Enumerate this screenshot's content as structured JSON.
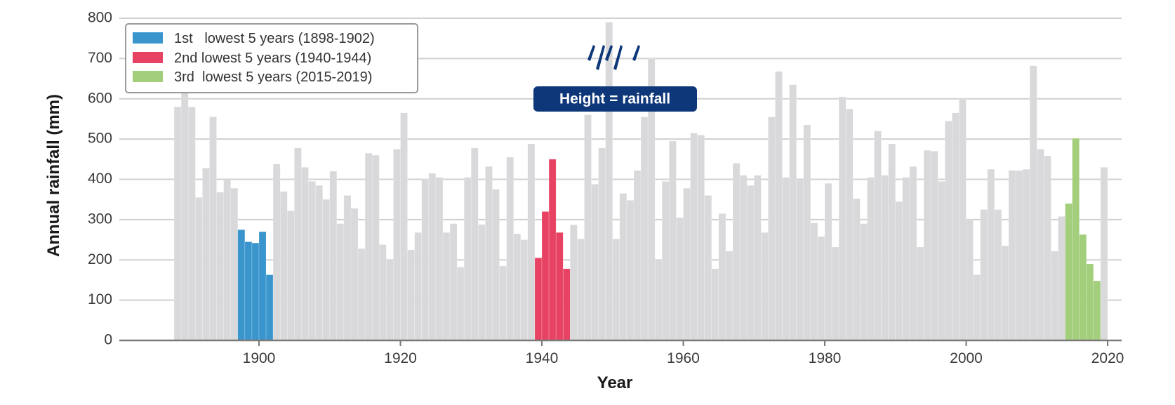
{
  "chart_data": {
    "type": "bar",
    "xlabel": "Year",
    "ylabel": "Annual rainfall (mm)",
    "ylim": [
      0,
      800
    ],
    "xlim": [
      1882,
      2022
    ],
    "xticks": [
      1900,
      1920,
      1940,
      1960,
      1980,
      2000,
      2020
    ],
    "yticks": [
      0,
      100,
      200,
      300,
      400,
      500,
      600,
      700,
      800
    ],
    "grid": "horizontal",
    "legend_position": "top-left",
    "legend": [
      {
        "label": "1st   lowest 5 years (1898-1902)",
        "color": "#3a95cd"
      },
      {
        "label": "2nd lowest 5 years (1940-1944)",
        "color": "#e84263"
      },
      {
        "label": "3rd  lowest 5 years (2015-2019)",
        "color": "#a3ce7c"
      }
    ],
    "annotation": "Height = rainfall",
    "colors": {
      "default": "#d9d9db",
      "low1": "#3a95cd",
      "low2": "#e84263",
      "low3": "#a3ce7c",
      "callout": "#0d3778",
      "grid": "#d0d0d0",
      "axis": "#7a7a7a"
    },
    "highlight_ranges": [
      {
        "start": 1898,
        "end": 1902,
        "color": "#3a95cd"
      },
      {
        "start": 1940,
        "end": 1944,
        "color": "#e84263"
      },
      {
        "start": 2015,
        "end": 2019,
        "color": "#a3ce7c"
      }
    ],
    "years": [
      1889,
      1890,
      1891,
      1892,
      1893,
      1894,
      1895,
      1896,
      1897,
      1898,
      1899,
      1900,
      1901,
      1902,
      1903,
      1904,
      1905,
      1906,
      1907,
      1908,
      1909,
      1910,
      1911,
      1912,
      1913,
      1914,
      1915,
      1916,
      1917,
      1918,
      1919,
      1920,
      1921,
      1922,
      1923,
      1924,
      1925,
      1926,
      1927,
      1928,
      1929,
      1930,
      1931,
      1932,
      1933,
      1934,
      1935,
      1936,
      1937,
      1938,
      1939,
      1940,
      1941,
      1942,
      1943,
      1944,
      1945,
      1946,
      1947,
      1948,
      1949,
      1950,
      1951,
      1952,
      1953,
      1954,
      1955,
      1956,
      1957,
      1958,
      1959,
      1960,
      1961,
      1962,
      1963,
      1964,
      1965,
      1966,
      1967,
      1968,
      1969,
      1970,
      1971,
      1972,
      1973,
      1974,
      1975,
      1976,
      1977,
      1978,
      1979,
      1980,
      1981,
      1982,
      1983,
      1984,
      1985,
      1986,
      1987,
      1988,
      1989,
      1990,
      1991,
      1992,
      1993,
      1994,
      1995,
      1996,
      1997,
      1998,
      1999,
      2000,
      2001,
      2002,
      2003,
      2004,
      2005,
      2006,
      2007,
      2008,
      2009,
      2010,
      2011,
      2012,
      2013,
      2014,
      2015,
      2016,
      2017,
      2018,
      2019,
      2020
    ],
    "values": [
      580,
      650,
      580,
      355,
      428,
      555,
      368,
      398,
      378,
      275,
      245,
      242,
      270,
      163,
      438,
      370,
      322,
      478,
      430,
      395,
      385,
      350,
      420,
      290,
      360,
      328,
      228,
      465,
      460,
      238,
      202,
      475,
      565,
      225,
      268,
      400,
      415,
      405,
      268,
      290,
      182,
      405,
      478,
      288,
      432,
      375,
      185,
      455,
      265,
      250,
      488,
      205,
      320,
      450,
      268,
      178,
      287,
      252,
      560,
      388,
      478,
      790,
      252,
      365,
      348,
      422,
      555,
      700,
      202,
      395,
      495,
      305,
      378,
      515,
      510,
      360,
      178,
      315,
      222,
      440,
      410,
      385,
      410,
      268,
      555,
      668,
      405,
      635,
      398,
      535,
      292,
      258,
      390,
      232,
      605,
      575,
      352,
      290,
      405,
      520,
      410,
      488,
      345,
      405,
      432,
      232,
      472,
      470,
      395,
      545,
      565,
      602,
      302,
      163,
      325,
      425,
      325,
      235,
      422,
      422,
      425,
      682,
      475,
      458,
      222,
      308,
      340,
      502,
      263,
      190,
      148,
      430
    ]
  }
}
